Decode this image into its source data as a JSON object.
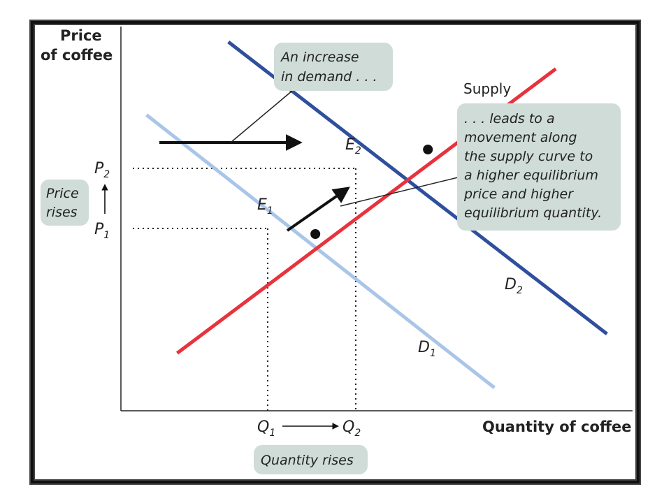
{
  "chart_data": {
    "type": "line",
    "title": "",
    "xlabel": "Quantity of coffee",
    "ylabel_line1": "Price",
    "ylabel_line2": "of coffee",
    "xlim": [
      0,
      10
    ],
    "ylim": [
      0,
      10
    ],
    "series": [
      {
        "name": "D1",
        "color": "#a9c6e8",
        "points": [
          [
            0.5,
            7.7
          ],
          [
            7.3,
            0.6
          ]
        ]
      },
      {
        "name": "D2",
        "color": "#2f4f9e",
        "points": [
          [
            2.1,
            9.6
          ],
          [
            9.5,
            2.0
          ]
        ]
      },
      {
        "name": "Supply",
        "color": "#e8323c",
        "points": [
          [
            1.1,
            1.5
          ],
          [
            8.5,
            8.9
          ]
        ]
      }
    ],
    "curve_labels": {
      "supply": "Supply",
      "d1": {
        "main": "D",
        "sub": "1"
      },
      "d2": {
        "main": "D",
        "sub": "2"
      }
    },
    "equilibria": [
      {
        "main": "E",
        "sub": "1",
        "x": 3.8,
        "y": 4.6
      },
      {
        "main": "E",
        "sub": "2",
        "x": 6.0,
        "y": 6.8
      }
    ],
    "x_ticks": [
      {
        "main": "Q",
        "sub": "1",
        "value": 3.8
      },
      {
        "main": "Q",
        "sub": "2",
        "value": 6.0
      }
    ],
    "y_ticks": [
      {
        "main": "P",
        "sub": "1",
        "value": 4.6
      },
      {
        "main": "P",
        "sub": "2",
        "value": 6.8
      }
    ],
    "annotations": {
      "increase_line1": "An increase",
      "increase_line2": "in demand . . .",
      "leads_lines": [
        ". . . leads to a",
        "movement along",
        "the supply curve to",
        "a higher equilibrium",
        "price and higher",
        "equilibrium quantity."
      ],
      "price_rises_line1": "Price",
      "price_rises_line2": "rises",
      "quantity_rises": "Quantity rises"
    },
    "grid": false
  }
}
